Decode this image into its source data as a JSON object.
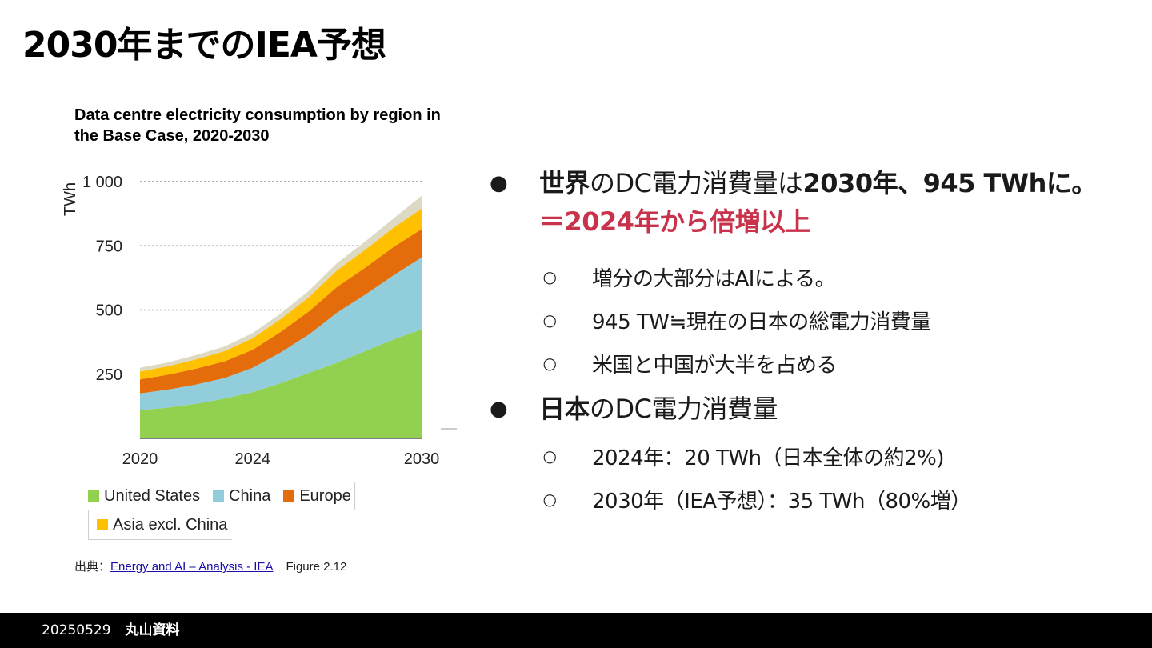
{
  "slide": {
    "title": "2030年までのIEA予想"
  },
  "chart_data": {
    "type": "area",
    "stacked": true,
    "title": "Data centre electricity consumption by region in the Base Case, 2020-2030",
    "xlabel": "",
    "ylabel": "TWh",
    "x": [
      2020,
      2021,
      2022,
      2023,
      2024,
      2025,
      2026,
      2027,
      2028,
      2029,
      2030
    ],
    "xticks": [
      "2020",
      "2024",
      "2030"
    ],
    "yticks": [
      "1 000",
      "750",
      "500",
      "250"
    ],
    "ylim": [
      0,
      1000
    ],
    "grid": true,
    "legend": "bottom",
    "series": [
      {
        "name": "United States",
        "color": "#92d050",
        "values": [
          110,
          120,
          135,
          155,
          180,
          215,
          255,
          295,
          340,
          385,
          425
        ]
      },
      {
        "name": "China",
        "color": "#92cddc",
        "values": [
          65,
          70,
          75,
          80,
          95,
          120,
          150,
          195,
          220,
          250,
          280
        ]
      },
      {
        "name": "Europe",
        "color": "#e46c0a",
        "values": [
          55,
          58,
          62,
          65,
          70,
          80,
          90,
          100,
          105,
          110,
          110
        ]
      },
      {
        "name": "Asia excl. China",
        "color": "#ffc000",
        "values": [
          30,
          33,
          36,
          40,
          45,
          50,
          55,
          65,
          70,
          75,
          80
        ]
      },
      {
        "name": "",
        "color": "#ddd9c3",
        "values": [
          15,
          15,
          17,
          18,
          20,
          22,
          25,
          28,
          32,
          36,
          50
        ]
      }
    ]
  },
  "legend": {
    "items": [
      {
        "label": "United States",
        "color": "#92d050"
      },
      {
        "label": "China",
        "color": "#92cddc"
      },
      {
        "label": "Europe",
        "color": "#e46c0a"
      },
      {
        "label": "Asia excl. China",
        "color": "#ffc000"
      }
    ]
  },
  "source": {
    "prefix": "出典：",
    "link": "Energy and AI – Analysis - IEA",
    "figure": "Figure 2.12"
  },
  "bullets": [
    {
      "bullet": "●",
      "bold1": "世界",
      "normal1": "のDC電力消費量は",
      "bold2": "2030年、945 TWhに。",
      "red": "＝2024年から倍増以上",
      "sub": [
        "増分の大部分はAIによる。",
        "945 TW≒現在の日本の総電力消費量",
        "米国と中国が大半を占める"
      ]
    },
    {
      "bullet": "●",
      "bold1": "日本",
      "normal1": "のDC電力消費量",
      "sub": [
        "2024年：20 TWh（日本全体の約2%)",
        "2030年（IEA予想）：35 TWh（80%増）"
      ]
    }
  ],
  "sub_bullet": "○",
  "footer": {
    "date": "20250529",
    "author": "丸山資料"
  }
}
